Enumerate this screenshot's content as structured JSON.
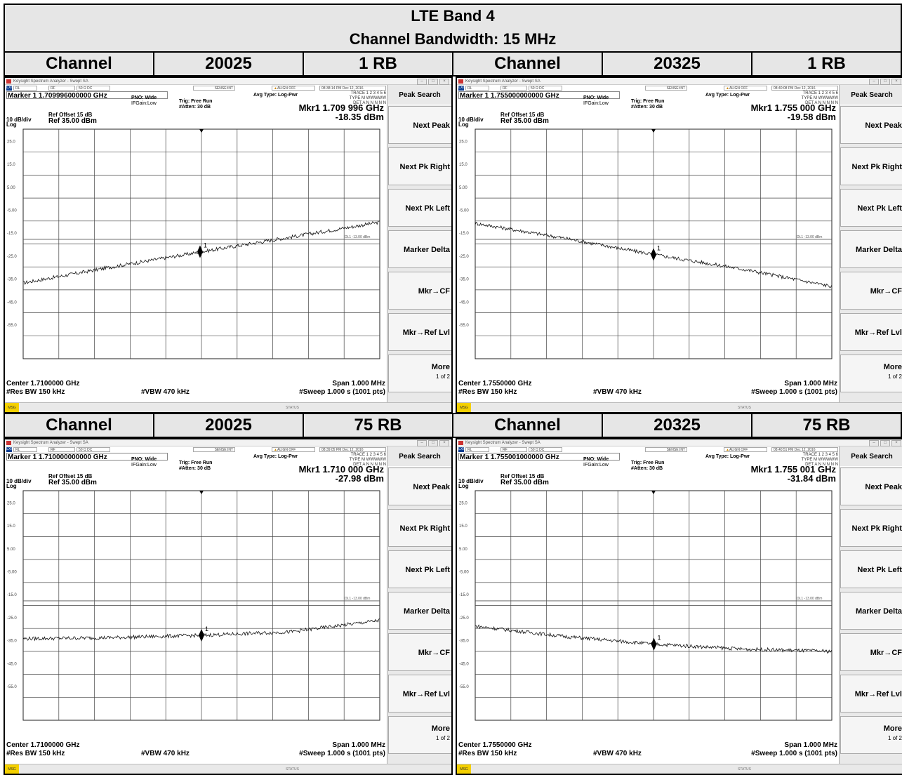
{
  "table": {
    "title": "LTE Band 4",
    "subtitle": "Channel Bandwidth: 15 MHz",
    "rows": [
      {
        "left": {
          "label": "Channel",
          "channel": "20025",
          "rb": "1 RB"
        },
        "right": {
          "label": "Channel",
          "channel": "20325",
          "rb": "1 RB"
        }
      },
      {
        "left": {
          "label": "Channel",
          "channel": "20025",
          "rb": "75 RB"
        },
        "right": {
          "label": "Channel",
          "channel": "20325",
          "rb": "75 RB"
        }
      }
    ]
  },
  "screens": [
    {
      "window_title": "Keysight Spectrum Analyzer - Swept SA",
      "time": "08:38:14 PM Dec 12, 2016",
      "marker_line": "Marker 1 1.709996000000 GHz",
      "mkr_freq": "Mkr1 1.709 996 GHz",
      "mkr_level": "-18.35 dBm",
      "center": "Center 1.7100000 GHz",
      "softkey_more_page": "1 of 2"
    },
    {
      "window_title": "Keysight Spectrum Analyzer - Swept SA",
      "time": "08:40:08 PM Dec 12, 2016",
      "marker_line": "Marker 1 1.755000000000 GHz",
      "mkr_freq": "Mkr1 1.755 000 GHz",
      "mkr_level": "-19.58 dBm",
      "center": "Center 1.7550000 GHz",
      "softkey_more_page": "1 of 2"
    },
    {
      "window_title": "Keysight Spectrum Analyzer - Swept SA",
      "time": "08:39:05 PM Dec 12, 2016",
      "marker_line": "Marker 1 1.710000000000 GHz",
      "mkr_freq": "Mkr1 1.710 000 GHz",
      "mkr_level": "-27.98 dBm",
      "center": "Center 1.7100000 GHz",
      "softkey_more_page": "1 of 2"
    },
    {
      "window_title": "Keysight Spectrum Analyzer - Swept SA",
      "time": "08:40:51 PM Dec 12, 2016",
      "marker_line": "Marker 1 1.755001000000 GHz",
      "mkr_freq": "Mkr1 1.755 001 GHz",
      "mkr_level": "-31.84 dBm",
      "center": "Center 1.7550000 GHz",
      "softkey_more_page": "1 of 2"
    }
  ],
  "common": {
    "status_items": [
      "RL",
      "RF",
      "50 Ω  DC",
      "SENSE:INT",
      "ALIGN OFF"
    ],
    "avg_type": "Avg Type: Log-Pwr",
    "pno": "PNO: Wide",
    "ifgain": "IFGain:Low",
    "trig": "Trig: Free Run",
    "atten": "#Atten: 30 dB",
    "trace_line1": "TRACE 1 2 3 4 5 6",
    "trace_line2": "TYPE M WWWWW",
    "trace_line3": "DET A N N N N N",
    "ref_offset": "Ref Offset 15 dB",
    "ref_level": "Ref 35.00 dBm",
    "scale_div": "10 dB/div",
    "scale_type": "Log",
    "y_ticks": [
      "25.0",
      "15.0",
      "5.00",
      "-5.00",
      "-15.0",
      "-25.0",
      "-35.0",
      "-45.0",
      "-55.0"
    ],
    "dl_label": "DL1 -13.00 dBm",
    "marker_tag": "1",
    "res_bw": "#Res BW 150 kHz",
    "vbw": "#VBW 470 kHz",
    "span": "Span 1.000 MHz",
    "sweep": "#Sweep  1.000 s (1001 pts)",
    "msg": "MSG",
    "status": "STATUS",
    "softkeys": {
      "title": "Peak Search",
      "next_peak": "Next Peak",
      "next_pk_right": "Next Pk Right",
      "next_pk_left": "Next Pk Left",
      "marker_delta": "Marker Delta",
      "mkr_cf": "Mkr→CF",
      "mkr_reflvl": "Mkr→Ref Lvl",
      "more": "More"
    }
  },
  "chart_data": [
    {
      "type": "line",
      "ylim": [
        -65,
        35
      ],
      "x": [
        1.7095,
        1.7105
      ],
      "xlabel": "",
      "ylabel": "",
      "grid": true,
      "series": [
        {
          "x": [
            1.7095,
            1.70975,
            1.71,
            1.71025,
            1.7105
          ],
          "values": [
            -32,
            -25,
            -18.4,
            -12,
            -5.5
          ]
        }
      ],
      "marker": {
        "x": 1.709996,
        "y": -18.35
      },
      "display_line": -13
    },
    {
      "type": "line",
      "ylim": [
        -65,
        35
      ],
      "x": [
        1.7545,
        1.7555
      ],
      "xlabel": "",
      "ylabel": "",
      "grid": true,
      "series": [
        {
          "x": [
            1.7545,
            1.75475,
            1.755,
            1.75525,
            1.7555
          ],
          "values": [
            -6,
            -12.5,
            -19.6,
            -26,
            -33.5
          ]
        }
      ],
      "marker": {
        "x": 1.755,
        "y": -19.58
      },
      "display_line": -13
    },
    {
      "type": "line",
      "ylim": [
        -65,
        35
      ],
      "x": [
        1.7095,
        1.7105
      ],
      "xlabel": "",
      "ylabel": "",
      "grid": true,
      "series": [
        {
          "x": [
            1.7095,
            1.70975,
            1.71,
            1.71025,
            1.7105
          ],
          "values": [
            -29.5,
            -29,
            -28,
            -26.5,
            -21.5
          ]
        }
      ],
      "marker": {
        "x": 1.71,
        "y": -27.98
      },
      "display_line": -13
    },
    {
      "type": "line",
      "ylim": [
        -65,
        35
      ],
      "x": [
        1.7545,
        1.7555
      ],
      "xlabel": "",
      "ylabel": "",
      "grid": true,
      "series": [
        {
          "x": [
            1.7545,
            1.75475,
            1.755,
            1.75525,
            1.7555
          ],
          "values": [
            -24,
            -28.5,
            -31.8,
            -34,
            -35
          ]
        }
      ],
      "marker": {
        "x": 1.755001,
        "y": -31.84
      },
      "display_line": -13
    }
  ]
}
